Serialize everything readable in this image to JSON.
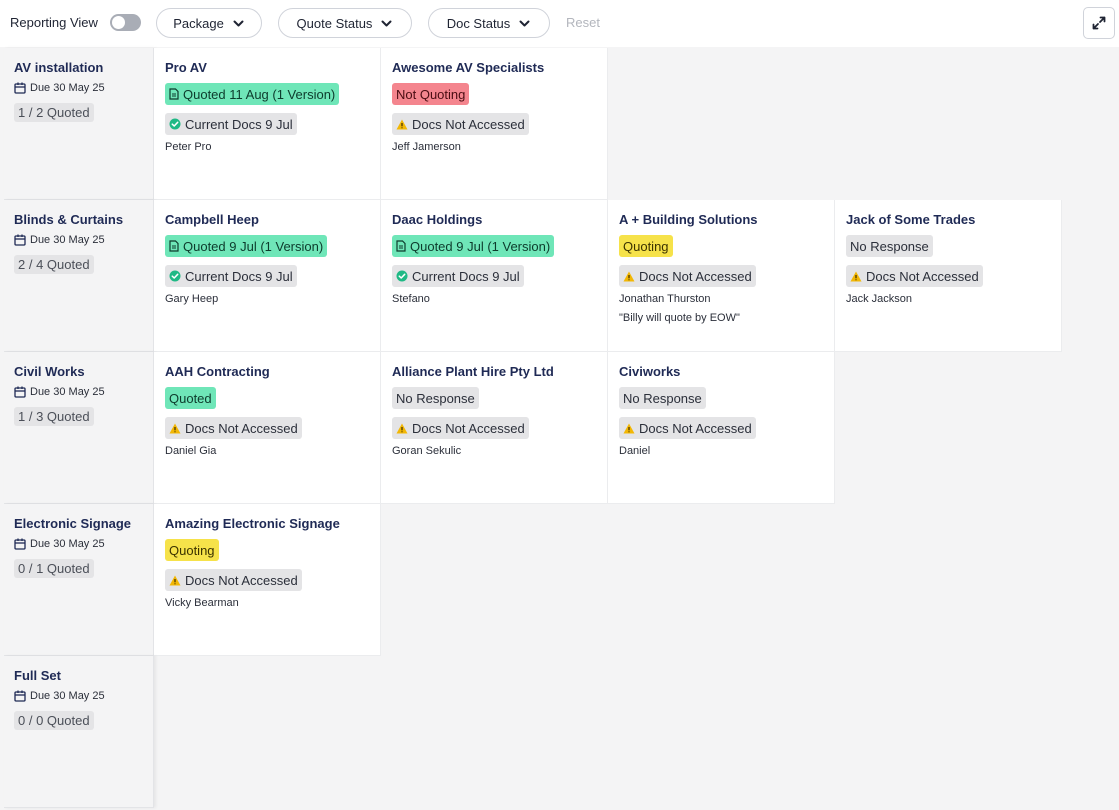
{
  "toolbar": {
    "reporting_view_label": "Reporting View",
    "reporting_view_on": false,
    "filters": [
      {
        "label": "Package"
      },
      {
        "label": "Quote Status"
      },
      {
        "label": "Doc Status"
      }
    ],
    "reset_label": "Reset",
    "expand_icon": "expand-arrows-icon"
  },
  "colors": {
    "quoted": "#6fe6b8",
    "not_quoting": "#f4858e",
    "quoting": "#f6e24a",
    "neutral": "#e4e4e6",
    "title": "#1f2a55",
    "current_docs_icon": "#1fb985",
    "warning_icon": "#f2b705"
  },
  "packages": [
    {
      "name": "AV installation",
      "due": "Due 30 May 25",
      "count": "1 / 2 Quoted",
      "vendors": [
        {
          "name": "Pro AV",
          "quote": "Quoted 11 Aug (1 Version)",
          "quote_status": "quoted",
          "quote_icon": "document-icon",
          "doc": "Current Docs 9 Jul",
          "doc_status": "current",
          "contact": "Peter Pro"
        },
        {
          "name": "Awesome AV Specialists",
          "quote": "Not Quoting",
          "quote_status": "not-quoting",
          "doc": "Docs Not Accessed",
          "doc_status": "not-accessed",
          "contact": "Jeff Jamerson"
        }
      ]
    },
    {
      "name": "Blinds & Curtains",
      "due": "Due 30 May 25",
      "count": "2 / 4 Quoted",
      "vendors": [
        {
          "name": "Campbell Heep",
          "quote": "Quoted 9 Jul (1 Version)",
          "quote_status": "quoted",
          "quote_icon": "document-icon",
          "doc": "Current Docs 9 Jul",
          "doc_status": "current",
          "contact": "Gary Heep"
        },
        {
          "name": "Daac Holdings",
          "quote": "Quoted 9 Jul (1 Version)",
          "quote_status": "quoted",
          "quote_icon": "document-icon",
          "doc": "Current Docs 9 Jul",
          "doc_status": "current",
          "contact": "Stefano"
        },
        {
          "name": "A + Building Solutions",
          "quote": "Quoting",
          "quote_status": "quoting",
          "doc": "Docs Not Accessed",
          "doc_status": "not-accessed",
          "contact": "Jonathan Thurston",
          "note": "\"Billy will quote by EOW\""
        },
        {
          "name": "Jack of Some Trades",
          "quote": "No Response",
          "quote_status": "no-response",
          "doc": "Docs Not Accessed",
          "doc_status": "not-accessed",
          "contact": "Jack Jackson"
        }
      ]
    },
    {
      "name": "Civil Works",
      "due": "Due 30 May 25",
      "count": "1 / 3 Quoted",
      "vendors": [
        {
          "name": "AAH Contracting",
          "quote": "Quoted",
          "quote_status": "quoted",
          "doc": "Docs Not Accessed",
          "doc_status": "not-accessed",
          "contact": "Daniel Gia"
        },
        {
          "name": "Alliance Plant Hire Pty Ltd",
          "quote": "No Response",
          "quote_status": "no-response",
          "doc": "Docs Not Accessed",
          "doc_status": "not-accessed",
          "contact": "Goran Sekulic"
        },
        {
          "name": "Civiworks",
          "quote": "No Response",
          "quote_status": "no-response",
          "doc": "Docs Not Accessed",
          "doc_status": "not-accessed",
          "contact": "Daniel"
        }
      ]
    },
    {
      "name": "Electronic Signage",
      "due": "Due 30 May 25",
      "count": "0 / 1 Quoted",
      "vendors": [
        {
          "name": "Amazing Electronic Signage",
          "quote": "Quoting",
          "quote_status": "quoting",
          "doc": "Docs Not Accessed",
          "doc_status": "not-accessed",
          "contact": "Vicky Bearman"
        }
      ]
    },
    {
      "name": "Full Set",
      "due": "Due 30 May 25",
      "count": "0 / 0 Quoted",
      "vendors": []
    }
  ]
}
